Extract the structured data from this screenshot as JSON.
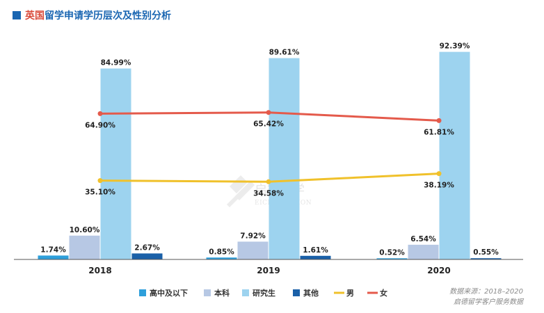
{
  "title": {
    "part1": "英国",
    "part2": "留学申请学历层次及性别分析"
  },
  "watermark": {
    "cn": "启德留学",
    "en": "EICEDUCATION"
  },
  "source": {
    "line1": "数据来源：2018–2020",
    "line2": "启德留学客户服务数据"
  },
  "colors": {
    "高中及以下": "#2e9fdb",
    "本科": "#b7c8e4",
    "研究生": "#9dd3ef",
    "其他": "#1a60a8",
    "男": "#f0c12b",
    "女": "#e45a4b",
    "title_blue": "#1a66b2",
    "title_red": "#d94a3a"
  },
  "chart_data": {
    "type": "bar",
    "categories": [
      "2018",
      "2019",
      "2020"
    ],
    "series": [
      {
        "name": "高中及以下",
        "type": "bar",
        "values": [
          1.74,
          0.85,
          0.52
        ],
        "labels": [
          "1.74%",
          "0.85%",
          "0.52%"
        ]
      },
      {
        "name": "本科",
        "type": "bar",
        "values": [
          10.6,
          7.92,
          6.54
        ],
        "labels": [
          "10.60%",
          "7.92%",
          "6.54%"
        ]
      },
      {
        "name": "研究生",
        "type": "bar",
        "values": [
          84.99,
          89.61,
          92.39
        ],
        "labels": [
          "84.99%",
          "89.61%",
          "92.39%"
        ]
      },
      {
        "name": "其他",
        "type": "bar",
        "values": [
          2.67,
          1.61,
          0.55
        ],
        "labels": [
          "2.67%",
          "1.61%",
          "0.55%"
        ]
      },
      {
        "name": "男",
        "type": "line",
        "values": [
          35.1,
          34.58,
          38.19
        ],
        "labels": [
          "35.10%",
          "34.58%",
          "38.19%"
        ]
      },
      {
        "name": "女",
        "type": "line",
        "values": [
          64.9,
          65.42,
          61.81
        ],
        "labels": [
          "64.90%",
          "65.42%",
          "61.81%"
        ]
      }
    ],
    "ylim": [
      0,
      100
    ],
    "grid": false,
    "legend_position": "bottom"
  }
}
